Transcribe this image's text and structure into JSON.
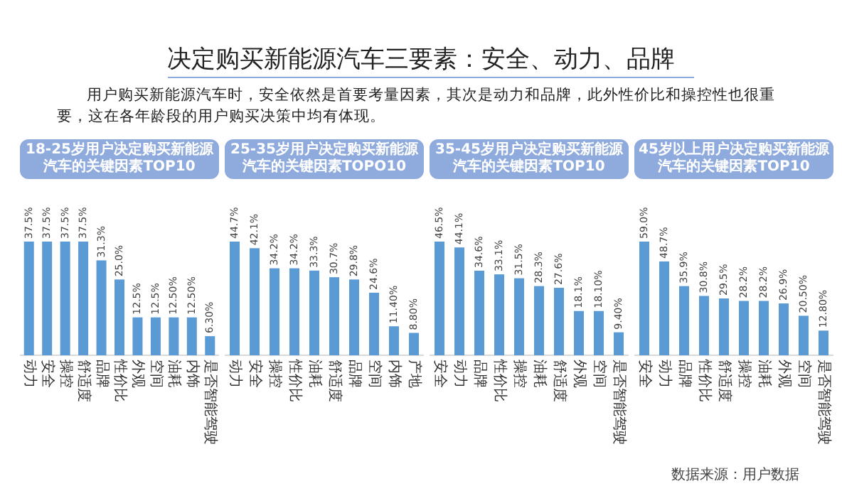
{
  "chart_data": [
    {
      "type": "other",
      "title": "决定购买新能源汽车三要素：安全、动力、品牌",
      "subtitle": "用户购买新能源汽车时，安全依然是首要考量因素，其次是动力和品牌，此外性价比和操控性也很重要，这在各年龄段的用户购买决策中均有体现。",
      "annotations": [
        "数据来源：用户数据"
      ]
    },
    {
      "type": "bar",
      "title": "18-25岁用户决定购买新能源汽车的关键因素TOP10",
      "color": "#5b9bd5",
      "categories": [
        "动力",
        "安全",
        "操控",
        "舒适度",
        "品牌",
        "性价比",
        "外观",
        "空间",
        "油耗",
        "内饰",
        "是否智能驾驶"
      ],
      "values": [
        37.5,
        37.5,
        37.5,
        37.5,
        31.3,
        25.0,
        12.5,
        12.5,
        12.5,
        12.5,
        6.3
      ],
      "value_labels": [
        "37.5%",
        "37.5%",
        "37.5%",
        "37.5%",
        "31.3%",
        "25.0%",
        "12.5%",
        "12.5%",
        "12.50%",
        "12.50%",
        "6.30%"
      ]
    },
    {
      "type": "bar",
      "title": "25-35岁用户决定购买新能源汽车的关键因素TOPO10",
      "color": "#5b9bd5",
      "categories": [
        "动力",
        "安全",
        "操控",
        "性价比",
        "油耗",
        "舒适度",
        "品牌",
        "空间",
        "内饰",
        "产地"
      ],
      "values": [
        44.7,
        42.1,
        34.2,
        34.2,
        33.3,
        30.7,
        29.8,
        24.6,
        11.4,
        8.8
      ],
      "value_labels": [
        "44.7%",
        "42.1%",
        "34.2%",
        "34.2%",
        "33.3%",
        "30.7%",
        "29.8%",
        "24.6%",
        "11.40%",
        "8.80%"
      ]
    },
    {
      "type": "bar",
      "title": "35-45岁用户决定购买新能源汽车的关键因素TOP10",
      "color": "#5b9bd5",
      "categories": [
        "安全",
        "动力",
        "品牌",
        "性价比",
        "操控",
        "油耗",
        "舒适度",
        "外观",
        "空间",
        "是否智能驾驶"
      ],
      "values": [
        46.5,
        44.1,
        34.6,
        33.1,
        31.5,
        28.3,
        27.6,
        18.1,
        18.1,
        9.4
      ],
      "value_labels": [
        "46.5%",
        "44.1%",
        "34.6%",
        "33.1%",
        "31.5%",
        "28.3%",
        "27.6%",
        "18.1%",
        "18.10%",
        "9.40%"
      ]
    },
    {
      "type": "bar",
      "title": "45岁以上用户决定购买新能源汽车的关键因素TOP10",
      "color": "#5b9bd5",
      "categories": [
        "安全",
        "动力",
        "品牌",
        "性价比",
        "舒适度",
        "操控",
        "油耗",
        "外观",
        "空间",
        "是否智能驾驶"
      ],
      "values": [
        59.0,
        48.7,
        35.9,
        30.8,
        29.5,
        28.2,
        28.2,
        26.9,
        20.5,
        12.8
      ],
      "value_labels": [
        "59.0%",
        "48.7%",
        "35.9%",
        "30.8%",
        "29.5%",
        "28.2%",
        "28.2%",
        "26.9%",
        "20.50%",
        "12.80%"
      ]
    }
  ]
}
